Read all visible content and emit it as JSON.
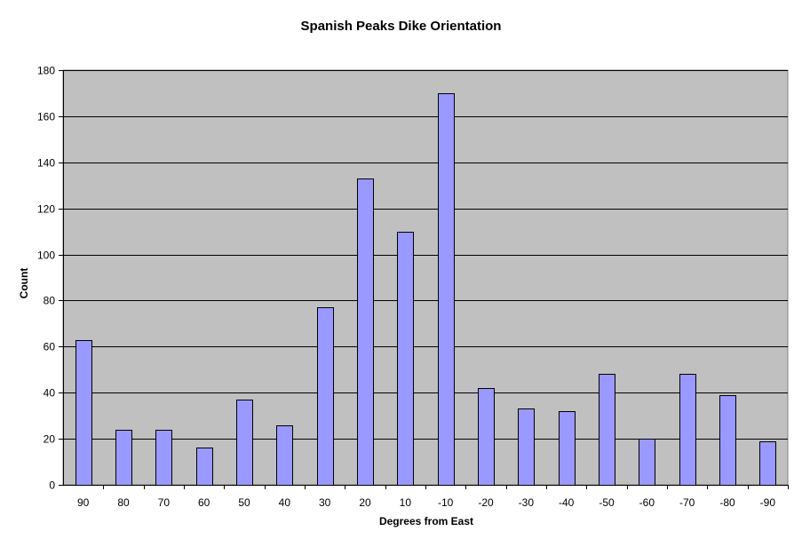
{
  "chart_data": {
    "type": "bar",
    "title": "Spanish Peaks Dike Orientation",
    "xlabel": "Degrees from East",
    "ylabel": "Count",
    "categories": [
      "90",
      "80",
      "70",
      "60",
      "50",
      "40",
      "30",
      "20",
      "10",
      "-10",
      "-20",
      "-30",
      "-40",
      "-50",
      "-60",
      "-70",
      "-80",
      "-90"
    ],
    "values": [
      63,
      24,
      24,
      16,
      37,
      26,
      77,
      133,
      110,
      170,
      42,
      33,
      32,
      48,
      20,
      48,
      39,
      19
    ],
    "ylim": [
      0,
      180
    ],
    "yticks": [
      0,
      20,
      40,
      60,
      80,
      100,
      120,
      140,
      160,
      180
    ],
    "grid": true,
    "colors": {
      "bar_fill": "#9999ff",
      "bar_stroke": "#000000",
      "plot_background": "#c0c0c0",
      "gridline": "#000000"
    }
  }
}
